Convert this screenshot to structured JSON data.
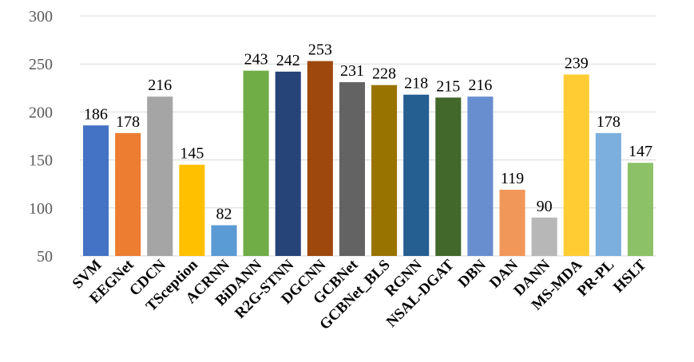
{
  "chart_data": {
    "type": "bar",
    "title": "",
    "xlabel": "",
    "ylabel": "",
    "ylim": [
      50,
      300
    ],
    "yticks": [
      50,
      100,
      150,
      200,
      250,
      300
    ],
    "grid": true,
    "legend": "none",
    "categories": [
      "SVM",
      "EEGNet",
      "CDCN",
      "TSception",
      "ACRNN",
      "BiDANN",
      "R2G-STNN",
      "DGCNN",
      "GCBNet",
      "GCBNet_BLS",
      "RGNN",
      "NSAL-DGAT",
      "DBN",
      "DAN",
      "DANN",
      "MS-MDA",
      "PR-PL",
      "HSLT"
    ],
    "values": [
      186,
      178,
      216,
      145,
      82,
      243,
      242,
      253,
      231,
      228,
      218,
      215,
      216,
      119,
      90,
      239,
      178,
      147
    ],
    "colors": [
      "#4472C4",
      "#ED7D31",
      "#A5A5A5",
      "#FFC000",
      "#5B9BD5",
      "#70AD47",
      "#264478",
      "#9E480E",
      "#636363",
      "#997300",
      "#255E91",
      "#43682B",
      "#698ED0",
      "#F1975A",
      "#B7B7B7",
      "#FFCD33",
      "#7CAFDD",
      "#8CC168"
    ]
  }
}
